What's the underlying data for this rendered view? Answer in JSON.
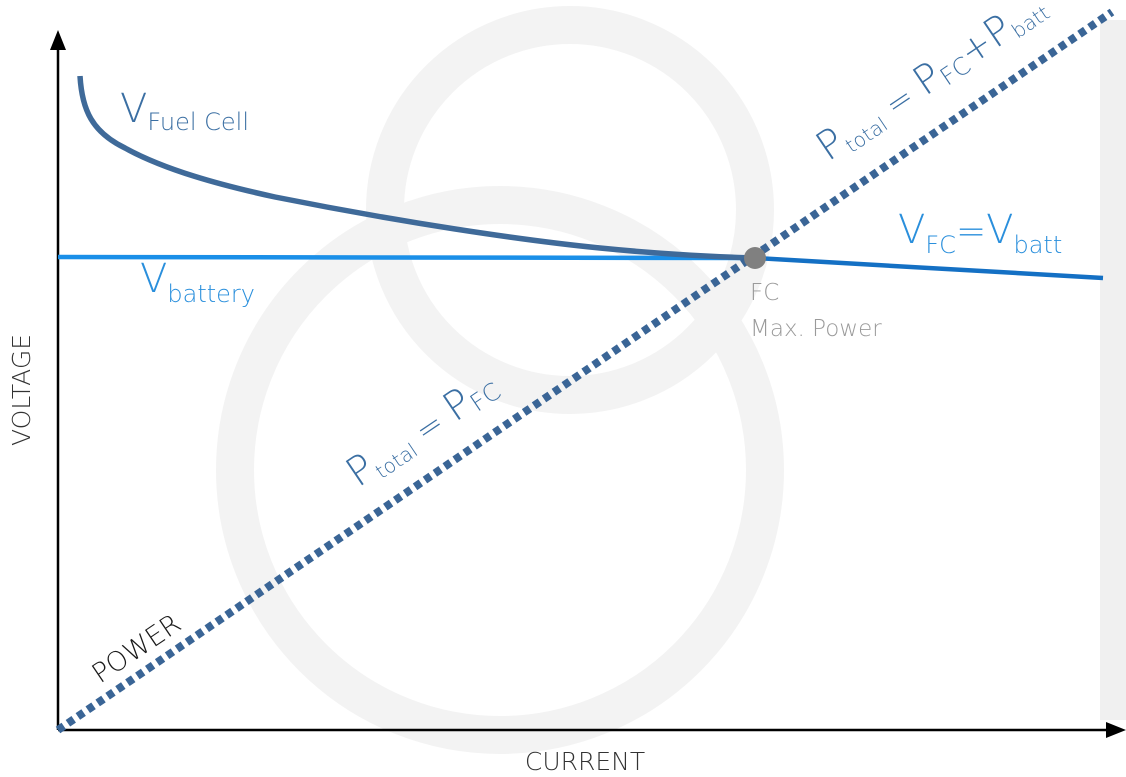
{
  "axes": {
    "x_label": "CURRENT",
    "y_label": "VOLTAGE"
  },
  "labels": {
    "v_fuel_cell_main": "V",
    "v_fuel_cell_sub": "Fuel Cell",
    "v_battery_main": "V",
    "v_battery_sub": "battery",
    "v_equal_main_1": "V",
    "v_equal_sub_1": "FC",
    "v_equal_eq": "=",
    "v_equal_main_2": "V",
    "v_equal_sub_2": "batt",
    "power": "POWER",
    "p_total_fc_main": "P",
    "p_total_fc_sub": "total",
    "p_total_fc_eq": " = ",
    "p_total_fc_main2": "P",
    "p_total_fc_sub2": "FC",
    "p_total_sum_main": "P",
    "p_total_sum_sub": "total",
    "p_total_sum_eq": " = ",
    "p_total_sum_main2": "P",
    "p_total_sum_sub2": "FC",
    "p_total_sum_plus": "+",
    "p_total_sum_main3": "P",
    "p_total_sum_sub3": "batt",
    "max_point_line1": "FC",
    "max_point_line2": "Max. Power"
  },
  "colors": {
    "fuel_cell_curve": "#3f6a99",
    "battery_line": "#1a8fe8",
    "equal_line": "#1470c4",
    "power_line": "#3a6596",
    "max_point": "#808080",
    "axis": "#000000"
  }
}
